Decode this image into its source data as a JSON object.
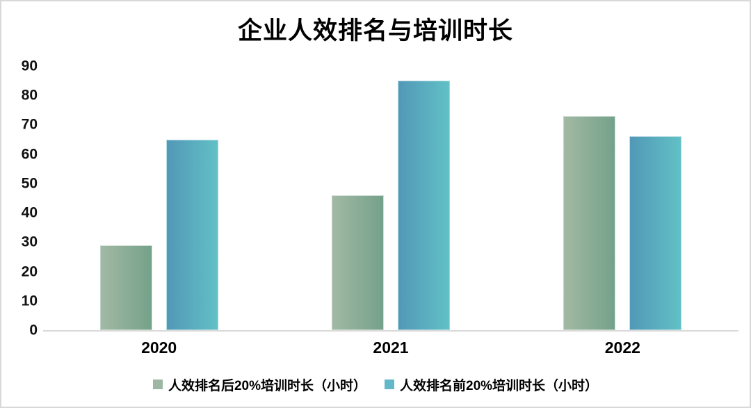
{
  "chart_data": {
    "type": "bar",
    "title": "企业人效排名与培训时长",
    "categories": [
      "2020",
      "2021",
      "2022"
    ],
    "series": [
      {
        "name": "人效排名后20%培训时长（小时）",
        "values": [
          29,
          46,
          73
        ],
        "color_from": "#a2b9a4",
        "color_to": "#74a18a",
        "legend_color": "#9db7a4"
      },
      {
        "name": "人效排名前20%培训时长（小时）",
        "values": [
          65,
          85,
          66
        ],
        "color_from": "#5298b7",
        "color_to": "#61c0c6",
        "legend_color": "#62b7c8"
      }
    ],
    "xlabel": "",
    "ylabel": "",
    "ylim": [
      0,
      90
    ],
    "yticks": [
      0,
      10,
      20,
      30,
      40,
      50,
      60,
      70,
      80,
      90
    ],
    "grid": false,
    "legend_position": "bottom",
    "axis_line_color": "#d9d9d9",
    "text_color": "#000000"
  }
}
